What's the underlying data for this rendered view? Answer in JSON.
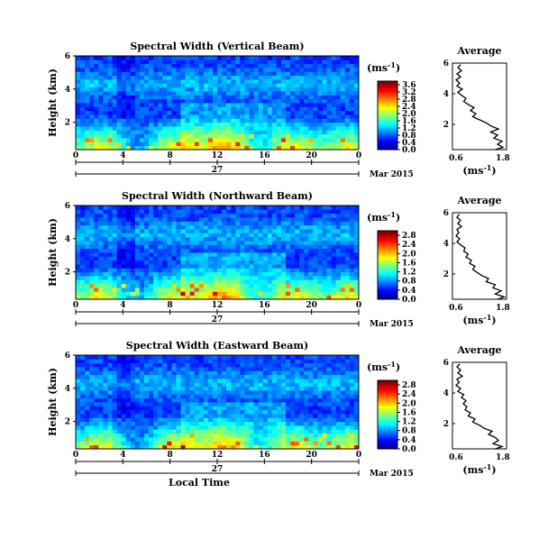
{
  "chart_data": [
    {
      "type": "heatmap",
      "title": "Spectral Width (Vertical Beam)",
      "ylabel": "Height (km)",
      "yticks": [
        "2",
        "4",
        "6"
      ],
      "xticks": [
        "0",
        "4",
        "8",
        "12",
        "16",
        "20",
        "0"
      ],
      "date_day": "27",
      "date_month_year": "Mar 2015",
      "xlim": [
        0,
        24
      ],
      "ylim": [
        0,
        6
      ],
      "colorbar": {
        "unit_base": "(ms",
        "unit_exp": "-1",
        "unit_close": ")",
        "ticks": [
          "0.0",
          "0.4",
          "0.8",
          "1.2",
          "1.6",
          "2.0",
          "2.4",
          "2.8",
          "3.2",
          "3.6"
        ],
        "range": [
          0,
          3.8
        ]
      },
      "average": {
        "title": "Average",
        "xlabel_base": "(ms",
        "xlabel_exp": "-1",
        "xlabel_close": ")",
        "xticks": [
          "0.6",
          "1.8"
        ],
        "yticks": [
          "2",
          "4",
          "6"
        ],
        "xlim": [
          0.6,
          1.8
        ],
        "ylim": [
          0,
          6
        ],
        "profile": [
          [
            0.35,
            1.55
          ],
          [
            0.5,
            1.72
          ],
          [
            0.7,
            1.6
          ],
          [
            0.9,
            1.7
          ],
          [
            1.1,
            1.52
          ],
          [
            1.3,
            1.6
          ],
          [
            1.5,
            1.45
          ],
          [
            1.7,
            1.62
          ],
          [
            1.9,
            1.45
          ],
          [
            2.1,
            1.35
          ],
          [
            2.3,
            1.2
          ],
          [
            2.5,
            1.05
          ],
          [
            2.7,
            1.12
          ],
          [
            2.9,
            1.0
          ],
          [
            3.1,
            1.08
          ],
          [
            3.3,
            0.95
          ],
          [
            3.5,
            0.85
          ],
          [
            3.7,
            0.9
          ],
          [
            3.9,
            0.8
          ],
          [
            4.1,
            0.72
          ],
          [
            4.3,
            0.82
          ],
          [
            4.5,
            0.7
          ],
          [
            4.7,
            0.76
          ],
          [
            4.9,
            0.68
          ],
          [
            5.1,
            0.78
          ],
          [
            5.3,
            0.7
          ],
          [
            5.5,
            0.8
          ],
          [
            5.7,
            0.72
          ],
          [
            5.9,
            0.78
          ]
        ]
      }
    },
    {
      "type": "heatmap",
      "title": "Spectral Width (Northward Beam)",
      "ylabel": "Height (km)",
      "yticks": [
        "2",
        "4",
        "6"
      ],
      "xticks": [
        "0",
        "4",
        "8",
        "12",
        "16",
        "20",
        "0"
      ],
      "date_day": "27",
      "date_month_year": "Mar 2015",
      "xlim": [
        0,
        24
      ],
      "ylim": [
        0,
        6
      ],
      "colorbar": {
        "unit_base": "(ms",
        "unit_exp": "-1",
        "unit_close": ")",
        "ticks": [
          "0.0",
          "0.4",
          "0.8",
          "1.2",
          "1.6",
          "2.0",
          "2.4",
          "2.8"
        ],
        "range": [
          0,
          3.0
        ]
      },
      "average": {
        "title": "Average",
        "xlabel_base": "(ms",
        "xlabel_exp": "-1",
        "xlabel_close": ")",
        "xticks": [
          "0.6",
          "1.8"
        ],
        "yticks": [
          "2",
          "4",
          "6"
        ],
        "xlim": [
          0.6,
          1.8
        ],
        "ylim": [
          0,
          6
        ],
        "profile": [
          [
            0.35,
            1.6
          ],
          [
            0.5,
            1.75
          ],
          [
            0.7,
            1.55
          ],
          [
            0.9,
            1.68
          ],
          [
            1.1,
            1.5
          ],
          [
            1.3,
            1.55
          ],
          [
            1.5,
            1.35
          ],
          [
            1.7,
            1.4
          ],
          [
            1.9,
            1.25
          ],
          [
            2.1,
            1.15
          ],
          [
            2.3,
            1.05
          ],
          [
            2.5,
            1.1
          ],
          [
            2.7,
            0.98
          ],
          [
            2.9,
            1.02
          ],
          [
            3.1,
            0.9
          ],
          [
            3.3,
            0.95
          ],
          [
            3.5,
            0.85
          ],
          [
            3.7,
            0.88
          ],
          [
            3.9,
            0.78
          ],
          [
            4.1,
            0.7
          ],
          [
            4.3,
            0.76
          ],
          [
            4.5,
            0.68
          ],
          [
            4.7,
            0.74
          ],
          [
            4.9,
            0.7
          ],
          [
            5.1,
            0.8
          ],
          [
            5.3,
            0.72
          ],
          [
            5.5,
            0.78
          ],
          [
            5.7,
            0.7
          ],
          [
            5.9,
            0.75
          ]
        ]
      }
    },
    {
      "type": "heatmap",
      "title": "Spectral Width (Eastward Beam)",
      "ylabel": "Height (km)",
      "yticks": [
        "2",
        "4",
        "6"
      ],
      "xticks": [
        "0",
        "4",
        "8",
        "12",
        "16",
        "20",
        "0"
      ],
      "date_day": "27",
      "date_month_year": "Mar 2015",
      "xlabel": "Local Time",
      "xlim": [
        0,
        24
      ],
      "ylim": [
        0,
        6
      ],
      "colorbar": {
        "unit_base": "(ms",
        "unit_exp": "-1",
        "unit_close": ")",
        "ticks": [
          "0.0",
          "0.4",
          "0.8",
          "1.2",
          "1.6",
          "2.0",
          "2.4",
          "2.8"
        ],
        "range": [
          0,
          3.0
        ]
      },
      "average": {
        "title": "Average",
        "xlabel_base": "(ms",
        "xlabel_exp": "-1",
        "xlabel_close": ")",
        "xticks": [
          "0.6",
          "1.8"
        ],
        "yticks": [
          "2",
          "4",
          "6"
        ],
        "xlim": [
          0.6,
          1.8
        ],
        "ylim": [
          0,
          6
        ],
        "profile": [
          [
            0.35,
            1.55
          ],
          [
            0.5,
            1.7
          ],
          [
            0.7,
            1.5
          ],
          [
            0.9,
            1.62
          ],
          [
            1.1,
            1.55
          ],
          [
            1.3,
            1.4
          ],
          [
            1.5,
            1.48
          ],
          [
            1.7,
            1.3
          ],
          [
            1.9,
            1.2
          ],
          [
            2.1,
            1.05
          ],
          [
            2.3,
            1.1
          ],
          [
            2.5,
            0.95
          ],
          [
            2.7,
            1.0
          ],
          [
            2.9,
            0.88
          ],
          [
            3.1,
            0.92
          ],
          [
            3.3,
            0.84
          ],
          [
            3.5,
            0.9
          ],
          [
            3.7,
            0.8
          ],
          [
            3.9,
            0.85
          ],
          [
            4.1,
            0.72
          ],
          [
            4.3,
            0.78
          ],
          [
            4.5,
            0.68
          ],
          [
            4.7,
            0.75
          ],
          [
            4.9,
            0.7
          ],
          [
            5.1,
            0.82
          ],
          [
            5.3,
            0.72
          ],
          [
            5.5,
            0.78
          ],
          [
            5.7,
            0.7
          ],
          [
            5.9,
            0.76
          ]
        ]
      }
    }
  ]
}
